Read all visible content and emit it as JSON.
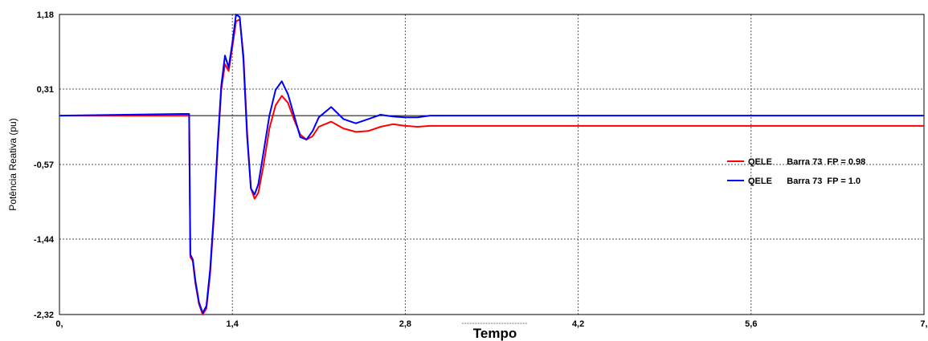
{
  "chart_data": {
    "type": "line",
    "title": "",
    "xlabel": "Tempo",
    "ylabel": "Potência Reativa (pu)",
    "xlim": [
      0,
      7
    ],
    "ylim": [
      -2.32,
      1.18
    ],
    "x_ticks": [
      0,
      1.4,
      2.8,
      4.2,
      5.6,
      7
    ],
    "x_tick_labels": [
      "0,",
      "1,4",
      "2,8",
      "4,2",
      "5,6",
      "7,"
    ],
    "y_ticks": [
      1.18,
      0.31,
      -0.57,
      -1.44,
      -2.32
    ],
    "y_tick_labels": [
      "1,18",
      "0,31",
      "-0,57",
      "-1,44",
      "-2,32"
    ],
    "grid": true,
    "legend_position": "right",
    "series": [
      {
        "name": "QELE      Barra 73  FP = 0.98",
        "color": "#ff0000",
        "x": [
          0,
          1.0,
          1.04,
          1.05,
          1.06,
          1.08,
          1.1,
          1.13,
          1.16,
          1.19,
          1.22,
          1.25,
          1.28,
          1.31,
          1.34,
          1.37,
          1.4,
          1.43,
          1.46,
          1.49,
          1.52,
          1.55,
          1.58,
          1.61,
          1.65,
          1.7,
          1.75,
          1.8,
          1.85,
          1.9,
          1.95,
          2.0,
          2.05,
          2.1,
          2.2,
          2.3,
          2.4,
          2.5,
          2.6,
          2.7,
          2.8,
          2.9,
          3.0,
          3.5,
          4.0,
          5.0,
          6.0,
          7.0
        ],
        "y": [
          0.0,
          0.0,
          0.0,
          0.0,
          -1.65,
          -1.7,
          -1.95,
          -2.2,
          -2.32,
          -2.25,
          -1.85,
          -1.2,
          -0.4,
          0.3,
          0.6,
          0.52,
          0.8,
          1.1,
          1.12,
          0.7,
          -0.2,
          -0.85,
          -0.97,
          -0.9,
          -0.6,
          -0.15,
          0.12,
          0.23,
          0.15,
          -0.05,
          -0.22,
          -0.28,
          -0.24,
          -0.13,
          -0.07,
          -0.15,
          -0.19,
          -0.18,
          -0.13,
          -0.1,
          -0.12,
          -0.13,
          -0.12,
          -0.12,
          -0.12,
          -0.12,
          -0.12,
          -0.12
        ]
      },
      {
        "name": "QELE      Barra 73  FP = 1.0",
        "color": "#0000ff",
        "x": [
          0,
          1.0,
          1.04,
          1.05,
          1.06,
          1.08,
          1.1,
          1.13,
          1.16,
          1.19,
          1.22,
          1.25,
          1.28,
          1.31,
          1.34,
          1.37,
          1.4,
          1.43,
          1.46,
          1.49,
          1.52,
          1.55,
          1.58,
          1.61,
          1.65,
          1.7,
          1.75,
          1.8,
          1.85,
          1.9,
          1.95,
          2.0,
          2.05,
          2.1,
          2.2,
          2.3,
          2.4,
          2.5,
          2.6,
          2.7,
          2.8,
          2.9,
          3.0,
          3.5,
          4.0,
          5.0,
          6.0,
          7.0
        ],
        "y": [
          0.0,
          0.02,
          0.02,
          0.02,
          -1.62,
          -1.68,
          -1.92,
          -2.18,
          -2.3,
          -2.22,
          -1.8,
          -1.15,
          -0.35,
          0.35,
          0.7,
          0.56,
          0.85,
          1.18,
          1.15,
          0.65,
          -0.25,
          -0.85,
          -0.92,
          -0.8,
          -0.45,
          0.0,
          0.3,
          0.4,
          0.25,
          0.0,
          -0.25,
          -0.28,
          -0.18,
          -0.02,
          0.1,
          -0.04,
          -0.09,
          -0.04,
          0.01,
          -0.01,
          -0.02,
          -0.02,
          0.0,
          0.0,
          0.0,
          0.0,
          0.0,
          0.0
        ]
      }
    ]
  }
}
